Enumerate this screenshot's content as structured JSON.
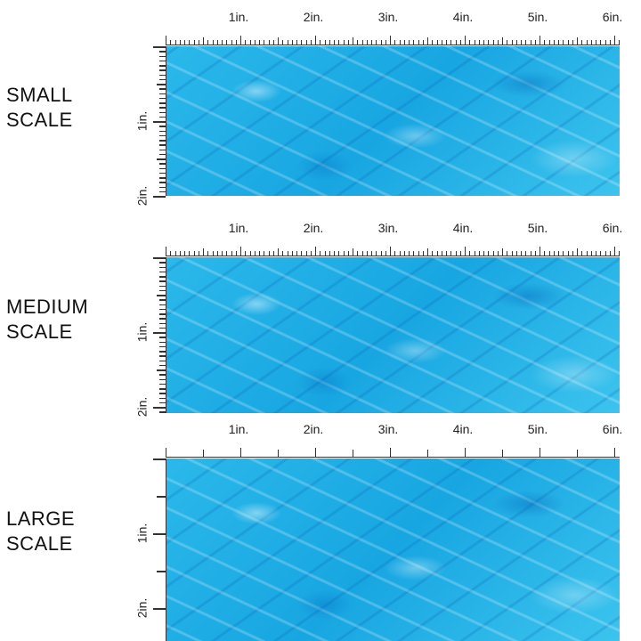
{
  "panels": [
    {
      "label_line1": "SMALL",
      "label_line2": "SCALE",
      "h_ticks": [
        "1in.",
        "2in.",
        "3in.",
        "4in.",
        "5in.",
        "6in."
      ],
      "v_ticks": [
        "1in.",
        "2in."
      ],
      "tick_subdivisions": 16
    },
    {
      "label_line1": "MEDIUM",
      "label_line2": "SCALE",
      "h_ticks": [
        "1in.",
        "2in.",
        "3in.",
        "4in.",
        "5in.",
        "6in."
      ],
      "v_ticks": [
        "1in.",
        "2in."
      ],
      "tick_subdivisions": 16
    },
    {
      "label_line1": "LARGE",
      "label_line2": "SCALE",
      "h_ticks": [
        "1in.",
        "2in.",
        "3in.",
        "4in.",
        "5in.",
        "6in."
      ],
      "v_ticks": [
        "1in.",
        "2in."
      ],
      "tick_subdivisions": 2
    }
  ],
  "colors": {
    "water": "#1ea9e4",
    "ruler": "#333333"
  }
}
